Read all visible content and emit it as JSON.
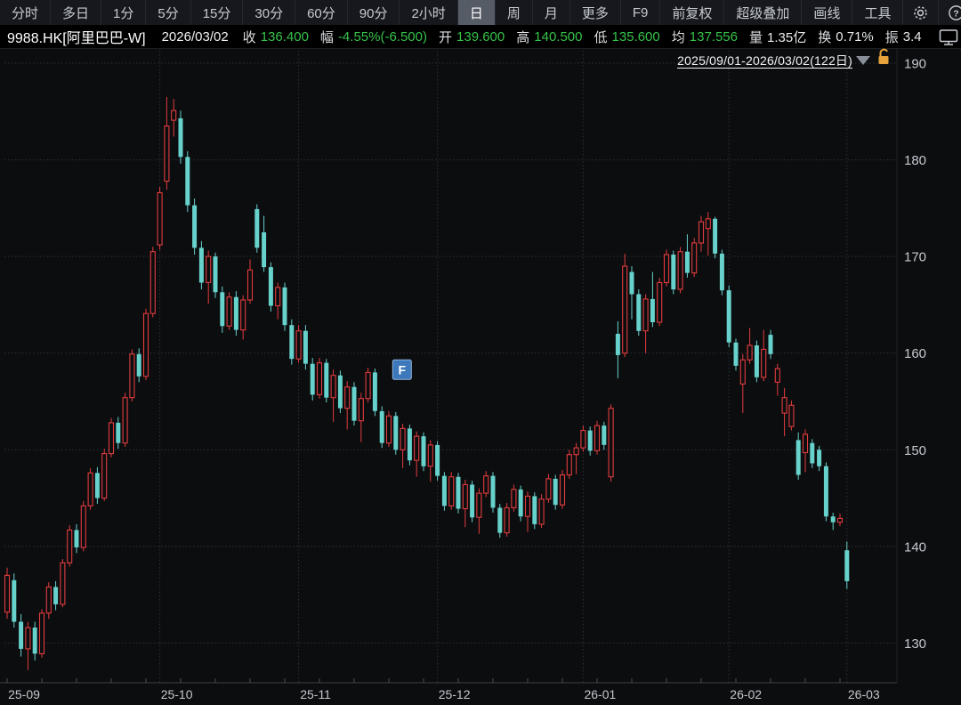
{
  "toolbar": {
    "left_items": [
      "分时",
      "多日",
      "1分",
      "5分",
      "15分",
      "30分",
      "60分",
      "90分",
      "2小时",
      "日",
      "周",
      "月",
      "更多"
    ],
    "selected": "日",
    "right_buttons": [
      "F9",
      "前复权",
      "超级叠加",
      "画线",
      "工具"
    ],
    "icons": {
      "settings": "gear-icon",
      "help": "help-icon",
      "more": "double-chevron-icon",
      "monitor": "monitor-icon",
      "lock": "unlock-icon",
      "dropdown": "triangle-down-icon"
    },
    "more_glyph": "»"
  },
  "quote": {
    "symbol": "9988.HK[阿里巴巴-W]",
    "date": "2026/03/02",
    "fields": [
      {
        "label": "收",
        "value": "136.400",
        "color": "green"
      },
      {
        "label": "幅",
        "value": "-4.55%(-6.500)",
        "color": "green"
      },
      {
        "label": "开",
        "value": "139.600",
        "color": "green"
      },
      {
        "label": "高",
        "value": "140.500",
        "color": "green"
      },
      {
        "label": "低",
        "value": "135.600",
        "color": "green"
      },
      {
        "label": "均",
        "value": "137.556",
        "color": "green"
      },
      {
        "label": "量",
        "value": "1.35亿",
        "color": "white"
      },
      {
        "label": "换",
        "value": "0.71%",
        "color": "white"
      },
      {
        "label": "振",
        "value": "3.4",
        "color": "white"
      }
    ]
  },
  "chart": {
    "range_label": "2025/09/01-2026/03/02(122日)"
  },
  "colors": {
    "up": "#e23c3e",
    "down": "#67d1cb",
    "green_text": "#35c24a",
    "grid": "#2e3138",
    "axis_text": "#c3c7cd",
    "background": "#0c0d0f",
    "lock_orange": "#e8a33d",
    "marker_blue": "#3d78ba"
  },
  "chart_data": {
    "type": "candlestick",
    "title": "9988.HK 阿里巴巴-W 日K 前复权",
    "ylim": [
      126,
      191.5
    ],
    "y_ticks": [
      190,
      180,
      170,
      160,
      150,
      140,
      130
    ],
    "grid": "dotted",
    "months": [
      {
        "label": "25-09",
        "day": 0
      },
      {
        "label": "25-10",
        "day": 22
      },
      {
        "label": "25-11",
        "day": 42
      },
      {
        "label": "25-12",
        "day": 62
      },
      {
        "label": "26-01",
        "day": 83
      },
      {
        "label": "26-02",
        "day": 104
      },
      {
        "label": "26-03",
        "day": 121
      }
    ],
    "event_marker": {
      "label": "F",
      "day": 56,
      "price": 159.3
    },
    "ohlc": [
      [
        133.2,
        137.8,
        132.5,
        137.0
      ],
      [
        136.5,
        137.2,
        131.6,
        132.2
      ],
      [
        132.2,
        133.0,
        128.6,
        129.4
      ],
      [
        129.4,
        132.2,
        127.2,
        131.6
      ],
      [
        131.6,
        132.2,
        128.2,
        128.9
      ],
      [
        128.9,
        133.5,
        128.5,
        133.1
      ],
      [
        133.1,
        136.3,
        132.5,
        135.8
      ],
      [
        135.8,
        136.4,
        133.4,
        134.0
      ],
      [
        134.0,
        138.7,
        133.7,
        138.3
      ],
      [
        138.3,
        142.2,
        137.9,
        141.7
      ],
      [
        141.7,
        142.3,
        139.3,
        139.9
      ],
      [
        139.9,
        144.7,
        139.5,
        144.2
      ],
      [
        144.2,
        148.1,
        143.8,
        147.6
      ],
      [
        147.6,
        148.2,
        144.4,
        145.0
      ],
      [
        145.0,
        150.1,
        144.7,
        149.6
      ],
      [
        149.6,
        153.3,
        149.2,
        152.8
      ],
      [
        152.8,
        153.4,
        150.1,
        150.7
      ],
      [
        150.7,
        155.9,
        150.3,
        155.4
      ],
      [
        155.4,
        160.4,
        155.0,
        159.9
      ],
      [
        159.9,
        160.5,
        157.0,
        157.6
      ],
      [
        157.6,
        164.6,
        157.2,
        164.1
      ],
      [
        164.1,
        171.0,
        163.7,
        170.5
      ],
      [
        171.2,
        177.2,
        170.7,
        176.6
      ],
      [
        177.8,
        186.5,
        176.9,
        183.5
      ],
      [
        184.1,
        186.3,
        182.4,
        185.1
      ],
      [
        184.3,
        185.1,
        179.6,
        180.3
      ],
      [
        180.3,
        180.9,
        174.6,
        175.3
      ],
      [
        175.3,
        176.0,
        170.2,
        170.9
      ],
      [
        170.9,
        171.6,
        166.6,
        167.3
      ],
      [
        167.3,
        170.6,
        165.1,
        170.0
      ],
      [
        170.0,
        170.4,
        165.7,
        166.3
      ],
      [
        166.3,
        166.9,
        162.1,
        162.8
      ],
      [
        162.8,
        166.3,
        162.4,
        165.8
      ],
      [
        165.8,
        166.4,
        161.8,
        162.4
      ],
      [
        162.4,
        166.0,
        161.4,
        165.5
      ],
      [
        165.5,
        169.7,
        165.1,
        168.6
      ],
      [
        174.9,
        175.4,
        170.4,
        170.9
      ],
      [
        172.5,
        174.2,
        168.4,
        168.9
      ],
      [
        168.9,
        169.4,
        164.3,
        164.9
      ],
      [
        164.9,
        167.3,
        163.5,
        166.8
      ],
      [
        166.8,
        167.3,
        162.3,
        162.9
      ],
      [
        162.9,
        163.5,
        158.8,
        159.4
      ],
      [
        159.4,
        162.9,
        159.0,
        162.3
      ],
      [
        162.3,
        162.9,
        158.3,
        158.9
      ],
      [
        158.9,
        159.5,
        155.1,
        155.7
      ],
      [
        155.7,
        159.5,
        155.3,
        159.0
      ],
      [
        159.0,
        159.4,
        154.9,
        155.4
      ],
      [
        155.4,
        158.3,
        152.9,
        157.7
      ],
      [
        157.7,
        158.2,
        153.8,
        154.3
      ],
      [
        154.3,
        157.1,
        152.1,
        156.5
      ],
      [
        156.5,
        157.0,
        152.5,
        153.0
      ],
      [
        153.0,
        155.9,
        150.8,
        155.3
      ],
      [
        155.3,
        158.5,
        154.9,
        158.0
      ],
      [
        158.0,
        158.4,
        153.5,
        154.0
      ],
      [
        154.0,
        154.5,
        150.2,
        150.7
      ],
      [
        150.7,
        154.0,
        150.3,
        153.5
      ],
      [
        153.5,
        153.9,
        149.5,
        150.0
      ],
      [
        150.0,
        152.7,
        148.1,
        152.2
      ],
      [
        152.2,
        152.6,
        148.4,
        148.9
      ],
      [
        148.9,
        151.9,
        147.2,
        151.4
      ],
      [
        151.4,
        151.8,
        147.8,
        148.3
      ],
      [
        148.3,
        151.0,
        146.7,
        150.5
      ],
      [
        150.5,
        150.9,
        146.8,
        147.3
      ],
      [
        147.3,
        147.7,
        143.7,
        144.2
      ],
      [
        144.2,
        147.7,
        143.8,
        147.2
      ],
      [
        147.2,
        147.6,
        143.4,
        143.9
      ],
      [
        143.9,
        146.9,
        142.0,
        146.4
      ],
      [
        146.4,
        146.8,
        142.5,
        143.0
      ],
      [
        143.0,
        146.0,
        141.3,
        145.5
      ],
      [
        145.5,
        147.8,
        145.1,
        147.3
      ],
      [
        147.3,
        147.7,
        143.5,
        144.0
      ],
      [
        144.0,
        144.4,
        140.9,
        141.4
      ],
      [
        141.4,
        144.5,
        141.0,
        144.0
      ],
      [
        144.0,
        146.4,
        143.6,
        145.9
      ],
      [
        145.9,
        146.3,
        142.6,
        143.1
      ],
      [
        143.1,
        145.7,
        141.5,
        145.2
      ],
      [
        145.2,
        145.6,
        141.8,
        142.3
      ],
      [
        142.3,
        145.4,
        141.9,
        144.9
      ],
      [
        144.9,
        147.5,
        144.5,
        147.0
      ],
      [
        147.0,
        147.4,
        143.8,
        144.3
      ],
      [
        144.3,
        147.9,
        143.9,
        147.4
      ],
      [
        147.4,
        150.0,
        147.0,
        149.5
      ],
      [
        149.5,
        150.7,
        147.5,
        150.2
      ],
      [
        150.2,
        152.5,
        149.8,
        152.0
      ],
      [
        152.0,
        152.4,
        149.4,
        149.9
      ],
      [
        149.9,
        153.0,
        149.5,
        152.5
      ],
      [
        152.5,
        152.9,
        150.0,
        150.5
      ],
      [
        147.2,
        154.7,
        146.7,
        154.3
      ],
      [
        162.0,
        163.3,
        157.4,
        159.8
      ],
      [
        160.0,
        170.3,
        159.6,
        169.0
      ],
      [
        168.4,
        169.0,
        163.5,
        166.1
      ],
      [
        166.1,
        166.6,
        161.8,
        162.3
      ],
      [
        162.3,
        166.1,
        160.0,
        165.6
      ],
      [
        165.6,
        168.4,
        162.7,
        163.2
      ],
      [
        163.2,
        167.8,
        162.8,
        167.3
      ],
      [
        167.3,
        170.7,
        166.9,
        170.2
      ],
      [
        170.2,
        170.6,
        166.1,
        166.6
      ],
      [
        166.6,
        171.0,
        166.2,
        170.5
      ],
      [
        170.5,
        172.3,
        167.8,
        168.3
      ],
      [
        168.3,
        171.9,
        167.9,
        171.4
      ],
      [
        171.4,
        174.2,
        170.5,
        173.6
      ],
      [
        172.9,
        174.6,
        170.1,
        173.9
      ],
      [
        173.9,
        174.1,
        169.8,
        170.3
      ],
      [
        170.3,
        170.7,
        166.0,
        166.5
      ],
      [
        166.5,
        167.0,
        160.6,
        161.1
      ],
      [
        161.1,
        161.5,
        158.2,
        158.7
      ],
      [
        156.8,
        159.9,
        153.8,
        159.3
      ],
      [
        159.3,
        162.6,
        158.9,
        160.8
      ],
      [
        160.8,
        161.3,
        157.0,
        157.5
      ],
      [
        157.5,
        162.4,
        157.1,
        160.4
      ],
      [
        161.9,
        162.4,
        159.4,
        159.9
      ],
      [
        157.0,
        158.9,
        155.6,
        158.4
      ],
      [
        153.8,
        156.4,
        151.4,
        155.4
      ],
      [
        152.4,
        155.1,
        152.0,
        154.6
      ],
      [
        151.0,
        151.8,
        146.9,
        147.4
      ],
      [
        149.7,
        152.1,
        147.7,
        151.6
      ],
      [
        150.7,
        151.1,
        148.1,
        148.6
      ],
      [
        150.0,
        150.4,
        147.8,
        148.3
      ],
      [
        148.3,
        148.7,
        142.6,
        143.1
      ],
      [
        143.1,
        143.5,
        141.7,
        142.5
      ],
      [
        142.5,
        143.4,
        142.1,
        142.9
      ],
      [
        139.6,
        140.5,
        135.6,
        136.4
      ]
    ]
  }
}
